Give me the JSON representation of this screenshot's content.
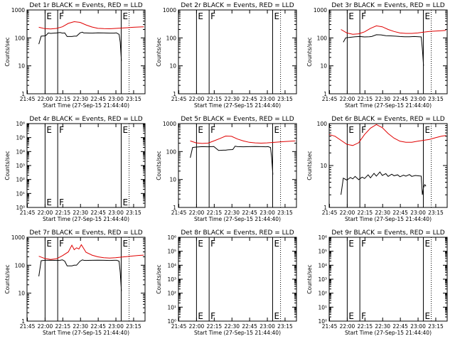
{
  "figure": {
    "xlabel": "Start Time (27-Sep-15 21:44:40)",
    "ylabel": "Counts/sec",
    "x_ticks": [
      "21:45",
      "22:00",
      "22:15",
      "22:30",
      "22:45",
      "23:00",
      "23:15"
    ],
    "x_tick_minutes": [
      0.33,
      15.33,
      30.33,
      45.33,
      60.33,
      75.33,
      90.33
    ],
    "x_range_minutes": [
      0,
      100
    ],
    "colors": {
      "events": "#000000",
      "lld": "#e00000",
      "axes": "#000000",
      "background": "#ffffff"
    },
    "flag_lines": [
      {
        "label": "E",
        "minute": 15.3,
        "style": "solid"
      },
      {
        "label": "F",
        "minute": 26.0,
        "style": "solid"
      },
      {
        "label": "E",
        "minute": 79.8,
        "style": "solid"
      },
      {
        "label": "",
        "minute": 86.5,
        "style": "dotted"
      }
    ]
  },
  "chart_data": [
    {
      "type": "line",
      "title": "Det 1r BLACK = Events, RED = LLD",
      "ylim": [
        1,
        1000
      ],
      "y_ticks": [
        "1",
        "10",
        "100",
        "1000"
      ],
      "series": [
        {
          "name": "Events",
          "color": "#000000",
          "x": [
            10,
            12,
            15,
            16,
            18,
            20,
            25,
            28,
            30,
            32,
            34,
            38,
            40,
            42,
            45,
            47,
            48,
            50,
            55,
            60,
            65,
            70,
            74,
            75,
            76,
            77,
            78,
            79,
            80
          ],
          "values": [
            60,
            115,
            118,
            122,
            150,
            145,
            150,
            155,
            148,
            150,
            112,
            112,
            115,
            115,
            152,
            160,
            150,
            150,
            148,
            152,
            150,
            148,
            148,
            150,
            150,
            140,
            135,
            70,
            15
          ]
        },
        {
          "name": "LLD",
          "color": "#e00000",
          "x": [
            10,
            15,
            20,
            25,
            30,
            35,
            40,
            45,
            50,
            55,
            60,
            65,
            70,
            75,
            80,
            85,
            90,
            95,
            99
          ],
          "values": [
            240,
            215,
            210,
            218,
            250,
            330,
            380,
            360,
            290,
            245,
            220,
            215,
            212,
            218,
            225,
            232,
            240,
            245,
            250
          ]
        }
      ]
    },
    {
      "type": "line",
      "title": "Det 2r BLACK = Events, RED = LLD",
      "ylim": [
        1,
        1000
      ],
      "y_ticks": [
        "1",
        "10",
        "100",
        "1000"
      ],
      "series": []
    },
    {
      "type": "line",
      "title": "Det 3r BLACK = Events, RED = LLD",
      "ylim": [
        1,
        1000
      ],
      "y_ticks": [
        "1",
        "10",
        "100",
        "1000"
      ],
      "series": [
        {
          "name": "Events",
          "color": "#000000",
          "x": [
            12,
            14,
            18,
            22,
            26,
            30,
            34,
            36,
            40,
            44,
            48,
            52,
            56,
            60,
            64,
            68,
            72,
            76,
            78,
            79,
            80
          ],
          "values": [
            70,
            100,
            105,
            110,
            112,
            108,
            110,
            112,
            130,
            128,
            120,
            118,
            115,
            112,
            110,
            110,
            112,
            110,
            108,
            40,
            10
          ]
        },
        {
          "name": "LLD",
          "color": "#e00000",
          "x": [
            10,
            15,
            20,
            25,
            30,
            35,
            40,
            45,
            50,
            55,
            60,
            65,
            70,
            75,
            80,
            85,
            90,
            95,
            99
          ],
          "values": [
            200,
            150,
            135,
            140,
            165,
            220,
            270,
            250,
            200,
            170,
            150,
            145,
            145,
            150,
            160,
            170,
            175,
            180,
            185
          ]
        }
      ]
    },
    {
      "type": "line",
      "title": "Det 4r BLACK = Events, RED = LLD",
      "ylim": [
        1,
        1000000
      ],
      "y_ticks": [
        "10⁰",
        "10¹",
        "10²",
        "10³",
        "10⁴",
        "10⁵",
        "10⁶"
      ],
      "series": []
    },
    {
      "type": "line",
      "title": "Det 5r BLACK = Events, RED = LLD",
      "ylim": [
        1,
        1000
      ],
      "y_ticks": [
        "1",
        "10",
        "100",
        "1000"
      ],
      "series": [
        {
          "name": "Events",
          "color": "#000000",
          "x": [
            10,
            12,
            15,
            20,
            25,
            28,
            30,
            34,
            38,
            40,
            42,
            46,
            48,
            50,
            55,
            60,
            65,
            70,
            74,
            76,
            78,
            79,
            80
          ],
          "values": [
            60,
            140,
            145,
            150,
            148,
            150,
            152,
            110,
            112,
            112,
            115,
            118,
            155,
            150,
            148,
            150,
            152,
            150,
            148,
            150,
            140,
            60,
            15
          ]
        },
        {
          "name": "LLD",
          "color": "#e00000",
          "x": [
            10,
            15,
            20,
            25,
            30,
            35,
            40,
            45,
            50,
            55,
            60,
            65,
            70,
            75,
            80,
            85,
            90,
            95,
            99
          ],
          "values": [
            240,
            205,
            195,
            200,
            240,
            290,
            360,
            350,
            280,
            240,
            215,
            205,
            200,
            205,
            212,
            220,
            228,
            235,
            240
          ]
        }
      ]
    },
    {
      "type": "line",
      "title": "Det 6r BLACK = Events, RED = LLD",
      "ylim": [
        1,
        100
      ],
      "y_ticks": [
        "1",
        "10",
        "100"
      ],
      "series": [
        {
          "name": "Events",
          "color": "#000000",
          "x": [
            10,
            12,
            15,
            18,
            20,
            22,
            25,
            28,
            30,
            33,
            35,
            38,
            40,
            43,
            45,
            48,
            50,
            53,
            55,
            58,
            60,
            63,
            65,
            68,
            70,
            73,
            75,
            78,
            79,
            80,
            81,
            82
          ],
          "values": [
            2,
            5,
            4.5,
            5.2,
            4.8,
            5.5,
            4.6,
            5.3,
            4.9,
            6,
            5.1,
            6.5,
            5.6,
            7,
            5.8,
            6.4,
            5.5,
            6.2,
            5.7,
            6,
            5.4,
            5.9,
            5.6,
            6.1,
            5.5,
            5.8,
            5.7,
            5.6,
            2,
            3,
            3.5,
            3.2
          ]
        },
        {
          "name": "LLD",
          "color": "#e00000",
          "x": [
            0,
            5,
            10,
            15,
            20,
            25,
            30,
            35,
            40,
            45,
            50,
            55,
            60,
            65,
            70,
            75,
            80,
            85,
            90,
            95,
            99
          ],
          "values": [
            55,
            50,
            40,
            32,
            30,
            35,
            55,
            78,
            95,
            80,
            58,
            45,
            38,
            36,
            36,
            38,
            40,
            42,
            46,
            50,
            52
          ]
        }
      ]
    },
    {
      "type": "line",
      "title": "Det 7r BLACK = Events, RED = LLD",
      "ylim": [
        1,
        1000
      ],
      "y_ticks": [
        "1",
        "10",
        "100",
        "1000"
      ],
      "series": [
        {
          "name": "Events",
          "color": "#000000",
          "x": [
            10,
            12,
            15,
            18,
            20,
            25,
            28,
            30,
            32,
            34,
            38,
            40,
            42,
            45,
            47,
            48,
            50,
            55,
            60,
            65,
            70,
            74,
            76,
            78,
            79,
            80
          ],
          "values": [
            40,
            145,
            150,
            150,
            152,
            148,
            150,
            155,
            140,
            95,
            95,
            100,
            100,
            140,
            155,
            150,
            148,
            150,
            152,
            150,
            148,
            150,
            150,
            140,
            55,
            12
          ]
        },
        {
          "name": "LLD",
          "color": "#e00000",
          "x": [
            10,
            15,
            20,
            25,
            30,
            35,
            38,
            40,
            42,
            44,
            46,
            50,
            55,
            60,
            65,
            70,
            75,
            80,
            85,
            90,
            95,
            99
          ],
          "values": [
            210,
            175,
            160,
            170,
            220,
            300,
            520,
            360,
            420,
            380,
            540,
            290,
            230,
            200,
            185,
            180,
            185,
            195,
            205,
            215,
            225,
            230
          ]
        }
      ]
    },
    {
      "type": "line",
      "title": "Det 8r BLACK = Events, RED = LLD",
      "ylim": [
        1,
        1000000
      ],
      "y_ticks": [
        "10⁰",
        "10¹",
        "10²",
        "10³",
        "10⁴",
        "10⁵",
        "10⁶"
      ],
      "series": []
    },
    {
      "type": "line",
      "title": "Det 9r BLACK = Events, RED = LLD",
      "ylim": [
        1,
        1000000
      ],
      "y_ticks": [
        "10⁰",
        "10¹",
        "10²",
        "10³",
        "10⁴",
        "10⁵",
        "10⁶"
      ],
      "series": []
    }
  ]
}
